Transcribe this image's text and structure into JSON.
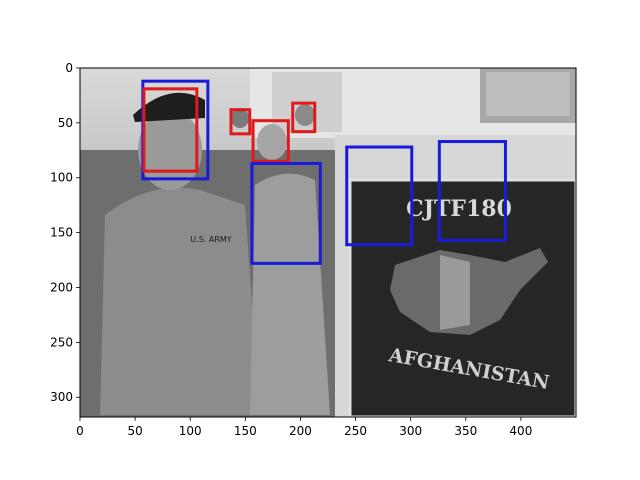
{
  "chart_data": {
    "type": "image_with_bounding_boxes",
    "title": "",
    "xlabel": "",
    "ylabel": "",
    "image_width": 450,
    "image_height": 318,
    "xlim": [
      0,
      450
    ],
    "ylim": [
      318,
      0
    ],
    "x_ticks": [
      0,
      50,
      100,
      150,
      200,
      250,
      300,
      350,
      400
    ],
    "y_ticks": [
      0,
      50,
      100,
      150,
      200,
      250,
      300
    ],
    "image_text": [
      "CJTF180",
      "AFGHANISTAN",
      "U.S. ARMY"
    ],
    "box_colors": {
      "red": "#e01a1a",
      "blue": "#1a1adb"
    },
    "boxes": [
      {
        "color": "blue",
        "x1": 57,
        "y1": 12,
        "x2": 116,
        "y2": 101
      },
      {
        "color": "red",
        "x1": 58,
        "y1": 19,
        "x2": 106,
        "y2": 94
      },
      {
        "color": "red",
        "x1": 137,
        "y1": 38,
        "x2": 154,
        "y2": 60
      },
      {
        "color": "red",
        "x1": 157,
        "y1": 48,
        "x2": 189,
        "y2": 85
      },
      {
        "color": "red",
        "x1": 193,
        "y1": 32,
        "x2": 213,
        "y2": 58
      },
      {
        "color": "blue",
        "x1": 156,
        "y1": 87,
        "x2": 218,
        "y2": 178
      },
      {
        "color": "blue",
        "x1": 242,
        "y1": 72,
        "x2": 301,
        "y2": 161
      },
      {
        "color": "blue",
        "x1": 326,
        "y1": 67,
        "x2": 386,
        "y2": 157
      }
    ]
  }
}
